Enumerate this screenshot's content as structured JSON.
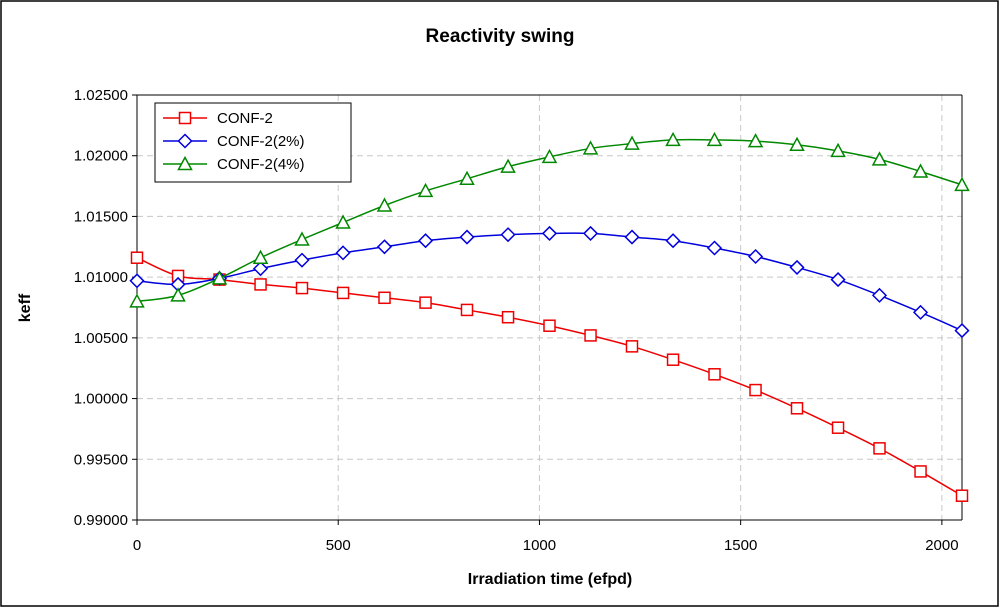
{
  "chart_data": {
    "type": "line",
    "title": "Reactivity swing",
    "xlabel": "Irradiation time (efpd)",
    "ylabel": "keff",
    "xlim": [
      0,
      2050
    ],
    "ylim": [
      0.99,
      1.025
    ],
    "xticks": [
      0,
      500,
      1000,
      1500,
      2000
    ],
    "xtick_labels": [
      "0",
      "500",
      "1000",
      "1500",
      "2000"
    ],
    "yticks": [
      0.99,
      0.995,
      1.0,
      1.005,
      1.01,
      1.015,
      1.02,
      1.025
    ],
    "ytick_labels": [
      "0.99000",
      "0.99500",
      "1.00000",
      "1.00500",
      "1.01000",
      "1.01500",
      "1.02000",
      "1.02500"
    ],
    "grid": true,
    "legend_position": "top-left",
    "x": [
      0,
      102,
      205,
      307,
      410,
      512,
      615,
      717,
      820,
      922,
      1025,
      1127,
      1230,
      1332,
      1435,
      1537,
      1640,
      1742,
      1845,
      1947,
      2050
    ],
    "series": [
      {
        "name": "CONF-2",
        "color": "#ee0000",
        "marker": "square",
        "values": [
          1.0116,
          1.0101,
          1.0098,
          1.0094,
          1.0091,
          1.0087,
          1.0083,
          1.0079,
          1.0073,
          1.0067,
          1.006,
          1.0052,
          1.0043,
          1.0032,
          1.002,
          1.0007,
          0.9992,
          0.9976,
          0.9959,
          0.994,
          0.992
        ]
      },
      {
        "name": "CONF-2(2%)",
        "color": "#0000dd",
        "marker": "diamond",
        "values": [
          1.0097,
          1.0094,
          1.0099,
          1.0107,
          1.0114,
          1.012,
          1.0125,
          1.013,
          1.0133,
          1.0135,
          1.0136,
          1.0136,
          1.0133,
          1.013,
          1.0124,
          1.0117,
          1.0108,
          1.0098,
          1.0085,
          1.0071,
          1.0056
        ]
      },
      {
        "name": "CONF-2(4%)",
        "color": "#008800",
        "marker": "triangle",
        "values": [
          1.008,
          1.0085,
          1.0099,
          1.0116,
          1.0131,
          1.0145,
          1.0159,
          1.0171,
          1.0181,
          1.0191,
          1.0199,
          1.0206,
          1.021,
          1.0213,
          1.0213,
          1.0212,
          1.0209,
          1.0204,
          1.0197,
          1.0187,
          1.0176
        ]
      }
    ]
  }
}
